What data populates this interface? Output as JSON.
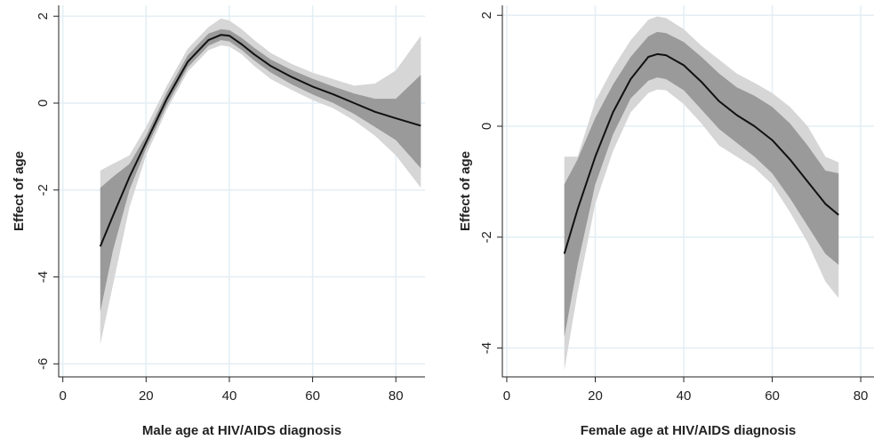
{
  "chart_data": [
    {
      "type": "line",
      "xlabel": "Male age at HIV/AIDS diagnosis",
      "ylabel": "Effect of age",
      "xlim": [
        -1,
        87
      ],
      "ylim": [
        -6.3,
        2.25
      ],
      "xticks": [
        0,
        20,
        40,
        60,
        80
      ],
      "yticks": [
        2,
        0,
        -2,
        -4,
        -6
      ],
      "grid": true,
      "colors": {
        "line": "#111111",
        "inner_band": "#9a9a9a",
        "outer_band": "#d6d6d6",
        "grid": "#e3eef5"
      },
      "x": [
        9,
        12,
        16,
        20,
        25,
        30,
        35,
        38,
        40,
        43,
        46,
        50,
        55,
        60,
        65,
        70,
        75,
        80,
        86
      ],
      "estimate": [
        -3.3,
        -2.6,
        -1.7,
        -0.9,
        0.1,
        0.95,
        1.45,
        1.57,
        1.55,
        1.35,
        1.12,
        0.85,
        0.6,
        0.38,
        0.2,
        0.0,
        -0.2,
        -0.35,
        -0.52
      ],
      "inner_band": {
        "lower": [
          -4.8,
          -3.4,
          -2.0,
          -1.05,
          -0.05,
          0.82,
          1.32,
          1.45,
          1.42,
          1.22,
          0.98,
          0.7,
          0.43,
          0.2,
          0.0,
          -0.25,
          -0.55,
          -0.85,
          -1.5
        ],
        "upper": [
          -1.95,
          -1.7,
          -1.4,
          -0.75,
          0.25,
          1.1,
          1.6,
          1.7,
          1.68,
          1.5,
          1.27,
          1.0,
          0.76,
          0.56,
          0.38,
          0.22,
          0.1,
          0.1,
          0.65
        ]
      },
      "outer_band": {
        "lower": [
          -5.55,
          -4.2,
          -2.4,
          -1.2,
          -0.15,
          0.72,
          1.22,
          1.33,
          1.3,
          1.12,
          0.85,
          0.55,
          0.3,
          0.07,
          -0.12,
          -0.4,
          -0.75,
          -1.2,
          -1.95
        ],
        "upper": [
          -1.55,
          -1.4,
          -1.2,
          -0.55,
          0.4,
          1.25,
          1.75,
          1.95,
          1.9,
          1.7,
          1.45,
          1.15,
          0.9,
          0.7,
          0.55,
          0.4,
          0.45,
          0.75,
          1.55
        ]
      }
    },
    {
      "type": "line",
      "xlabel": "Female age at HIV/AIDS diagnosis",
      "ylabel": "Effect of age",
      "xlim": [
        -1,
        83
      ],
      "ylim": [
        -4.52,
        2.18
      ],
      "xticks": [
        0,
        20,
        40,
        60,
        80
      ],
      "yticks": [
        2,
        0,
        -2,
        -4
      ],
      "grid": true,
      "colors": {
        "line": "#111111",
        "inner_band": "#9a9a9a",
        "outer_band": "#d6d6d6",
        "grid": "#e3eef5"
      },
      "x": [
        13,
        16,
        20,
        24,
        28,
        32,
        34,
        36,
        40,
        44,
        48,
        52,
        56,
        60,
        64,
        68,
        72,
        75
      ],
      "estimate": [
        -2.3,
        -1.5,
        -0.55,
        0.25,
        0.85,
        1.25,
        1.3,
        1.28,
        1.1,
        0.8,
        0.45,
        0.2,
        0.0,
        -0.25,
        -0.6,
        -1.0,
        -1.4,
        -1.6
      ],
      "inner_band": {
        "lower": [
          -3.8,
          -2.5,
          -1.05,
          -0.15,
          0.5,
          0.82,
          0.88,
          0.85,
          0.65,
          0.3,
          -0.05,
          -0.3,
          -0.55,
          -0.85,
          -1.3,
          -1.8,
          -2.3,
          -2.5
        ],
        "upper": [
          -1.05,
          -0.6,
          0.15,
          0.75,
          1.25,
          1.62,
          1.7,
          1.68,
          1.52,
          1.25,
          0.95,
          0.7,
          0.55,
          0.35,
          0.05,
          -0.35,
          -0.8,
          -0.85
        ]
      },
      "outer_band": {
        "lower": [
          -4.4,
          -3.0,
          -1.4,
          -0.45,
          0.25,
          0.6,
          0.66,
          0.65,
          0.4,
          0.05,
          -0.35,
          -0.55,
          -0.75,
          -1.05,
          -1.55,
          -2.1,
          -2.8,
          -3.1
        ],
        "upper": [
          -0.55,
          -0.55,
          0.45,
          1.05,
          1.55,
          1.92,
          1.98,
          1.95,
          1.75,
          1.45,
          1.2,
          0.95,
          0.78,
          0.6,
          0.35,
          0.0,
          -0.55,
          -0.65
        ]
      }
    }
  ]
}
